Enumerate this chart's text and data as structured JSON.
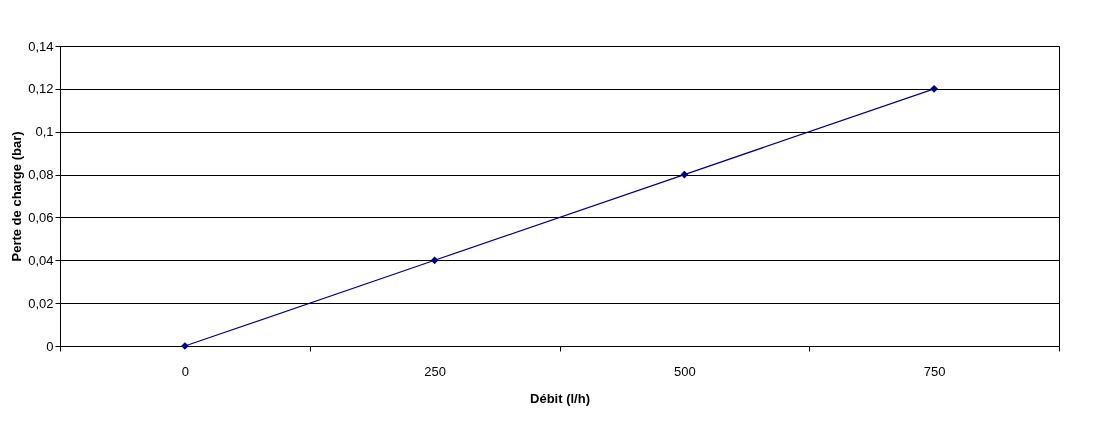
{
  "chart_data": {
    "type": "line",
    "xlabel": "Débit  (l/h)",
    "ylabel": "Perte de charge (bar)",
    "categories": [
      "0",
      "250",
      "500",
      "750"
    ],
    "series": [
      {
        "color": "#000080",
        "values": [
          0,
          0.04,
          0.08,
          0.12
        ]
      }
    ],
    "ylim": [
      0,
      0.14
    ],
    "yticks": [
      0,
      {
        "value": 0.02,
        "label": "0,02"
      },
      {
        "value": 0.04,
        "label": "0,04"
      },
      {
        "value": 0.06,
        "label": "0,06"
      },
      {
        "value": 0.08,
        "label": "0,08"
      },
      {
        "value": 0.1,
        "label": "0,1"
      },
      {
        "value": 0.12,
        "label": "0,12"
      },
      {
        "value": 0.14,
        "label": "0,14"
      }
    ],
    "grid": "y",
    "marker": "diamond",
    "line_style": "solid"
  }
}
